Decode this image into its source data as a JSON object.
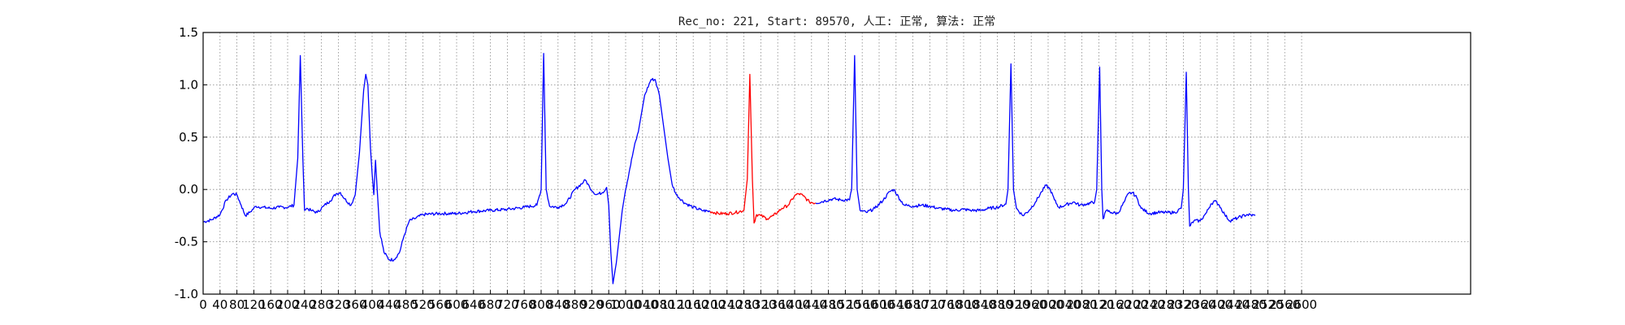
{
  "chart_data": {
    "type": "line",
    "title": "Rec_no: 221, Start: 89570, 人工: 正常, 算法: 正常",
    "xlabel": "",
    "ylabel": "",
    "xlim": [
      0,
      3000
    ],
    "ylim": [
      -1.0,
      1.5
    ],
    "x_ticks": [
      0,
      40,
      80,
      120,
      160,
      200,
      240,
      280,
      320,
      360,
      400,
      440,
      480,
      520,
      560,
      600,
      640,
      680,
      720,
      760,
      800,
      840,
      880,
      920,
      960,
      1000,
      1040,
      1080,
      1120,
      1160,
      1200,
      1240,
      1280,
      1320,
      1360,
      1400,
      1440,
      1480,
      1520,
      1560,
      1600,
      1640,
      1680,
      1720,
      1760,
      1800,
      1840,
      1880,
      1920,
      1960,
      2000,
      2040,
      2080,
      2120,
      2160,
      2200,
      2240,
      2280,
      2320,
      2360,
      2400,
      2440,
      2480,
      2520,
      2560,
      2600
    ],
    "y_ticks": [
      -1.0,
      -0.5,
      0.0,
      0.5,
      1.0,
      1.5
    ],
    "grid": true,
    "highlight_range": [
      1200,
      1450
    ],
    "series": [
      {
        "color": "#0000ff",
        "points": [
          [
            0,
            -0.31
          ],
          [
            20,
            -0.29
          ],
          [
            40,
            -0.24
          ],
          [
            55,
            -0.1
          ],
          [
            70,
            -0.04
          ],
          [
            80,
            -0.05
          ],
          [
            90,
            -0.15
          ],
          [
            100,
            -0.25
          ],
          [
            110,
            -0.22
          ],
          [
            125,
            -0.16
          ],
          [
            140,
            -0.17
          ],
          [
            160,
            -0.18
          ],
          [
            180,
            -0.17
          ],
          [
            200,
            -0.17
          ],
          [
            215,
            -0.15
          ],
          [
            224,
            0.3
          ],
          [
            230,
            1.28
          ],
          [
            236,
            0.3
          ],
          [
            240,
            -0.2
          ],
          [
            245,
            -0.18
          ],
          [
            255,
            -0.2
          ],
          [
            270,
            -0.22
          ],
          [
            285,
            -0.16
          ],
          [
            300,
            -0.11
          ],
          [
            315,
            -0.04
          ],
          [
            325,
            -0.03
          ],
          [
            335,
            -0.09
          ],
          [
            350,
            -0.15
          ],
          [
            360,
            -0.05
          ],
          [
            370,
            0.35
          ],
          [
            380,
            0.95
          ],
          [
            385,
            1.1
          ],
          [
            390,
            1.0
          ],
          [
            396,
            0.4
          ],
          [
            400,
            0.15
          ],
          [
            404,
            -0.05
          ],
          [
            408,
            0.28
          ],
          [
            412,
            0.0
          ],
          [
            418,
            -0.4
          ],
          [
            428,
            -0.6
          ],
          [
            440,
            -0.67
          ],
          [
            452,
            -0.67
          ],
          [
            465,
            -0.6
          ],
          [
            475,
            -0.45
          ],
          [
            488,
            -0.3
          ],
          [
            500,
            -0.28
          ],
          [
            520,
            -0.24
          ],
          [
            560,
            -0.23
          ],
          [
            600,
            -0.23
          ],
          [
            640,
            -0.21
          ],
          [
            680,
            -0.2
          ],
          [
            720,
            -0.19
          ],
          [
            760,
            -0.17
          ],
          [
            790,
            -0.15
          ],
          [
            800,
            0.0
          ],
          [
            806,
            1.3
          ],
          [
            812,
            0.0
          ],
          [
            820,
            -0.16
          ],
          [
            840,
            -0.17
          ],
          [
            860,
            -0.13
          ],
          [
            880,
            -0.0
          ],
          [
            900,
            0.07
          ],
          [
            905,
            0.09
          ],
          [
            915,
            0.02
          ],
          [
            930,
            -0.05
          ],
          [
            945,
            -0.03
          ],
          [
            955,
            0.02
          ],
          [
            960,
            -0.15
          ],
          [
            965,
            -0.6
          ],
          [
            970,
            -0.9
          ],
          [
            978,
            -0.7
          ],
          [
            985,
            -0.45
          ],
          [
            992,
            -0.2
          ],
          [
            1000,
            0.0
          ],
          [
            1010,
            0.2
          ],
          [
            1020,
            0.4
          ],
          [
            1030,
            0.55
          ],
          [
            1045,
            0.9
          ],
          [
            1060,
            1.05
          ],
          [
            1070,
            1.05
          ],
          [
            1080,
            0.9
          ],
          [
            1090,
            0.6
          ],
          [
            1100,
            0.3
          ],
          [
            1110,
            0.05
          ],
          [
            1120,
            -0.05
          ],
          [
            1140,
            -0.13
          ],
          [
            1160,
            -0.17
          ],
          [
            1180,
            -0.2
          ],
          [
            1200,
            -0.21
          ]
        ]
      },
      {
        "color": "#ff0000",
        "points": [
          [
            1200,
            -0.21
          ],
          [
            1220,
            -0.23
          ],
          [
            1240,
            -0.23
          ],
          [
            1260,
            -0.22
          ],
          [
            1280,
            -0.2
          ],
          [
            1288,
            0.1
          ],
          [
            1294,
            1.1
          ],
          [
            1300,
            0.1
          ],
          [
            1304,
            -0.32
          ],
          [
            1310,
            -0.24
          ],
          [
            1320,
            -0.25
          ],
          [
            1335,
            -0.28
          ],
          [
            1350,
            -0.25
          ],
          [
            1370,
            -0.18
          ],
          [
            1385,
            -0.15
          ],
          [
            1400,
            -0.06
          ],
          [
            1410,
            -0.04
          ],
          [
            1420,
            -0.06
          ],
          [
            1435,
            -0.12
          ],
          [
            1450,
            -0.13
          ]
        ]
      },
      {
        "color": "#0000ff",
        "points": [
          [
            1450,
            -0.13
          ],
          [
            1470,
            -0.11
          ],
          [
            1490,
            -0.09
          ],
          [
            1510,
            -0.1
          ],
          [
            1530,
            -0.1
          ],
          [
            1535,
            0.0
          ],
          [
            1542,
            1.28
          ],
          [
            1548,
            0.0
          ],
          [
            1555,
            -0.2
          ],
          [
            1570,
            -0.22
          ],
          [
            1590,
            -0.18
          ],
          [
            1610,
            -0.1
          ],
          [
            1625,
            -0.02
          ],
          [
            1635,
            0.0
          ],
          [
            1650,
            -0.1
          ],
          [
            1660,
            -0.15
          ],
          [
            1680,
            -0.16
          ],
          [
            1700,
            -0.15
          ],
          [
            1720,
            -0.16
          ],
          [
            1740,
            -0.18
          ],
          [
            1760,
            -0.19
          ],
          [
            1780,
            -0.2
          ],
          [
            1800,
            -0.19
          ],
          [
            1820,
            -0.2
          ],
          [
            1840,
            -0.2
          ],
          [
            1860,
            -0.18
          ],
          [
            1880,
            -0.17
          ],
          [
            1900,
            -0.14
          ],
          [
            1905,
            0.0
          ],
          [
            1912,
            1.2
          ],
          [
            1918,
            0.0
          ],
          [
            1925,
            -0.18
          ],
          [
            1940,
            -0.25
          ],
          [
            1955,
            -0.2
          ],
          [
            1970,
            -0.12
          ],
          [
            1985,
            -0.02
          ],
          [
            1995,
            0.04
          ],
          [
            2005,
            0.0
          ],
          [
            2015,
            -0.1
          ],
          [
            2025,
            -0.17
          ],
          [
            2040,
            -0.15
          ],
          [
            2060,
            -0.12
          ],
          [
            2075,
            -0.15
          ],
          [
            2090,
            -0.14
          ],
          [
            2110,
            -0.12
          ],
          [
            2115,
            0.0
          ],
          [
            2122,
            1.17
          ],
          [
            2127,
            0.0
          ],
          [
            2130,
            -0.28
          ],
          [
            2138,
            -0.2
          ],
          [
            2150,
            -0.22
          ],
          [
            2165,
            -0.23
          ],
          [
            2180,
            -0.12
          ],
          [
            2190,
            -0.04
          ],
          [
            2200,
            -0.03
          ],
          [
            2210,
            -0.08
          ],
          [
            2220,
            -0.18
          ],
          [
            2240,
            -0.23
          ],
          [
            2260,
            -0.22
          ],
          [
            2280,
            -0.22
          ],
          [
            2300,
            -0.22
          ],
          [
            2315,
            -0.18
          ],
          [
            2320,
            0.0
          ],
          [
            2327,
            1.12
          ],
          [
            2332,
            0.0
          ],
          [
            2335,
            -0.35
          ],
          [
            2345,
            -0.3
          ],
          [
            2360,
            -0.3
          ],
          [
            2375,
            -0.22
          ],
          [
            2385,
            -0.14
          ],
          [
            2395,
            -0.11
          ],
          [
            2405,
            -0.15
          ],
          [
            2418,
            -0.24
          ],
          [
            2430,
            -0.3
          ],
          [
            2450,
            -0.27
          ],
          [
            2470,
            -0.24
          ],
          [
            2490,
            -0.25
          ]
        ]
      }
    ]
  }
}
